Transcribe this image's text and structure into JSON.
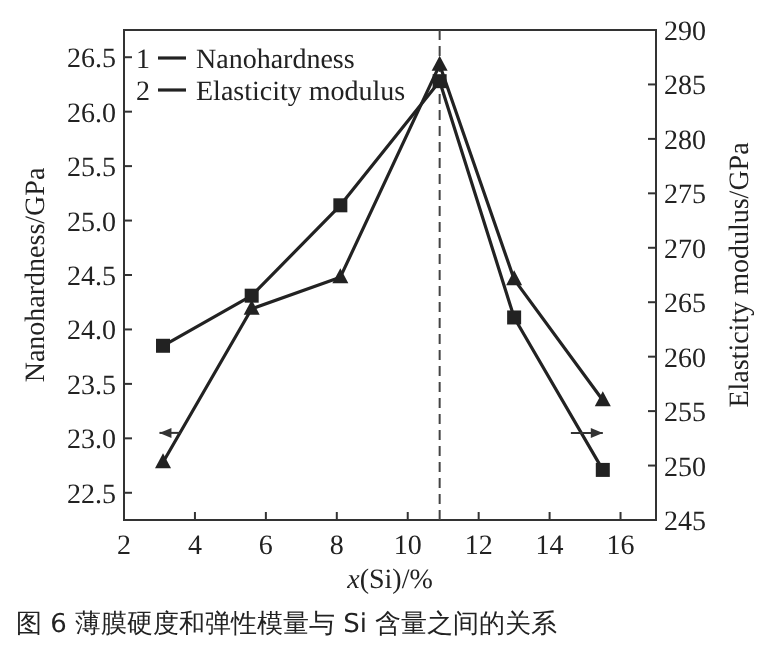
{
  "chart_data": {
    "type": "line",
    "xlabel": "x(Si)/%",
    "ylabel": "Nanohardness/GPa",
    "y2label": "Elasticity modulus/GPa",
    "xlim": [
      2,
      17
    ],
    "xticks": [
      2,
      4,
      6,
      8,
      10,
      12,
      14,
      16
    ],
    "ylim": [
      22.25,
      26.75
    ],
    "yticks": [
      22.5,
      {
        "value": 23,
        "label": "23.0"
      },
      23.5,
      {
        "value": 24,
        "label": "24.0"
      },
      24.5,
      {
        "value": 25,
        "label": "25.0"
      },
      25.5,
      {
        "value": 26,
        "label": "26.0"
      },
      26.5
    ],
    "y2lim": [
      245,
      290
    ],
    "y2ticks": [
      245,
      250,
      255,
      260,
      265,
      270,
      275,
      280,
      285,
      290
    ],
    "x": [
      3.1,
      5.6,
      8.1,
      10.9,
      13.0,
      15.5
    ],
    "series": [
      {
        "name": "Nanohardness",
        "color": "#222222",
        "marker": "triangle",
        "values": [
          22.78,
          24.19,
          24.48,
          26.43,
          24.46,
          23.35
        ]
      },
      {
        "name": "Elasticity modulus",
        "color": "#222222",
        "marker": "square",
        "axis": "y2",
        "values": [
          261.0,
          265.6,
          273.9,
          285.3,
          263.6,
          249.6
        ]
      }
    ],
    "ref_lines": [
      {
        "axis": "x",
        "value": 10.9,
        "line_style": "dashed",
        "color": "#444444"
      }
    ],
    "legend": "top left",
    "grid": false,
    "annotations": [
      "1",
      "2",
      "图 6    薄膜硬度和弹性模量与 Si 含量之间的关系"
    ]
  }
}
